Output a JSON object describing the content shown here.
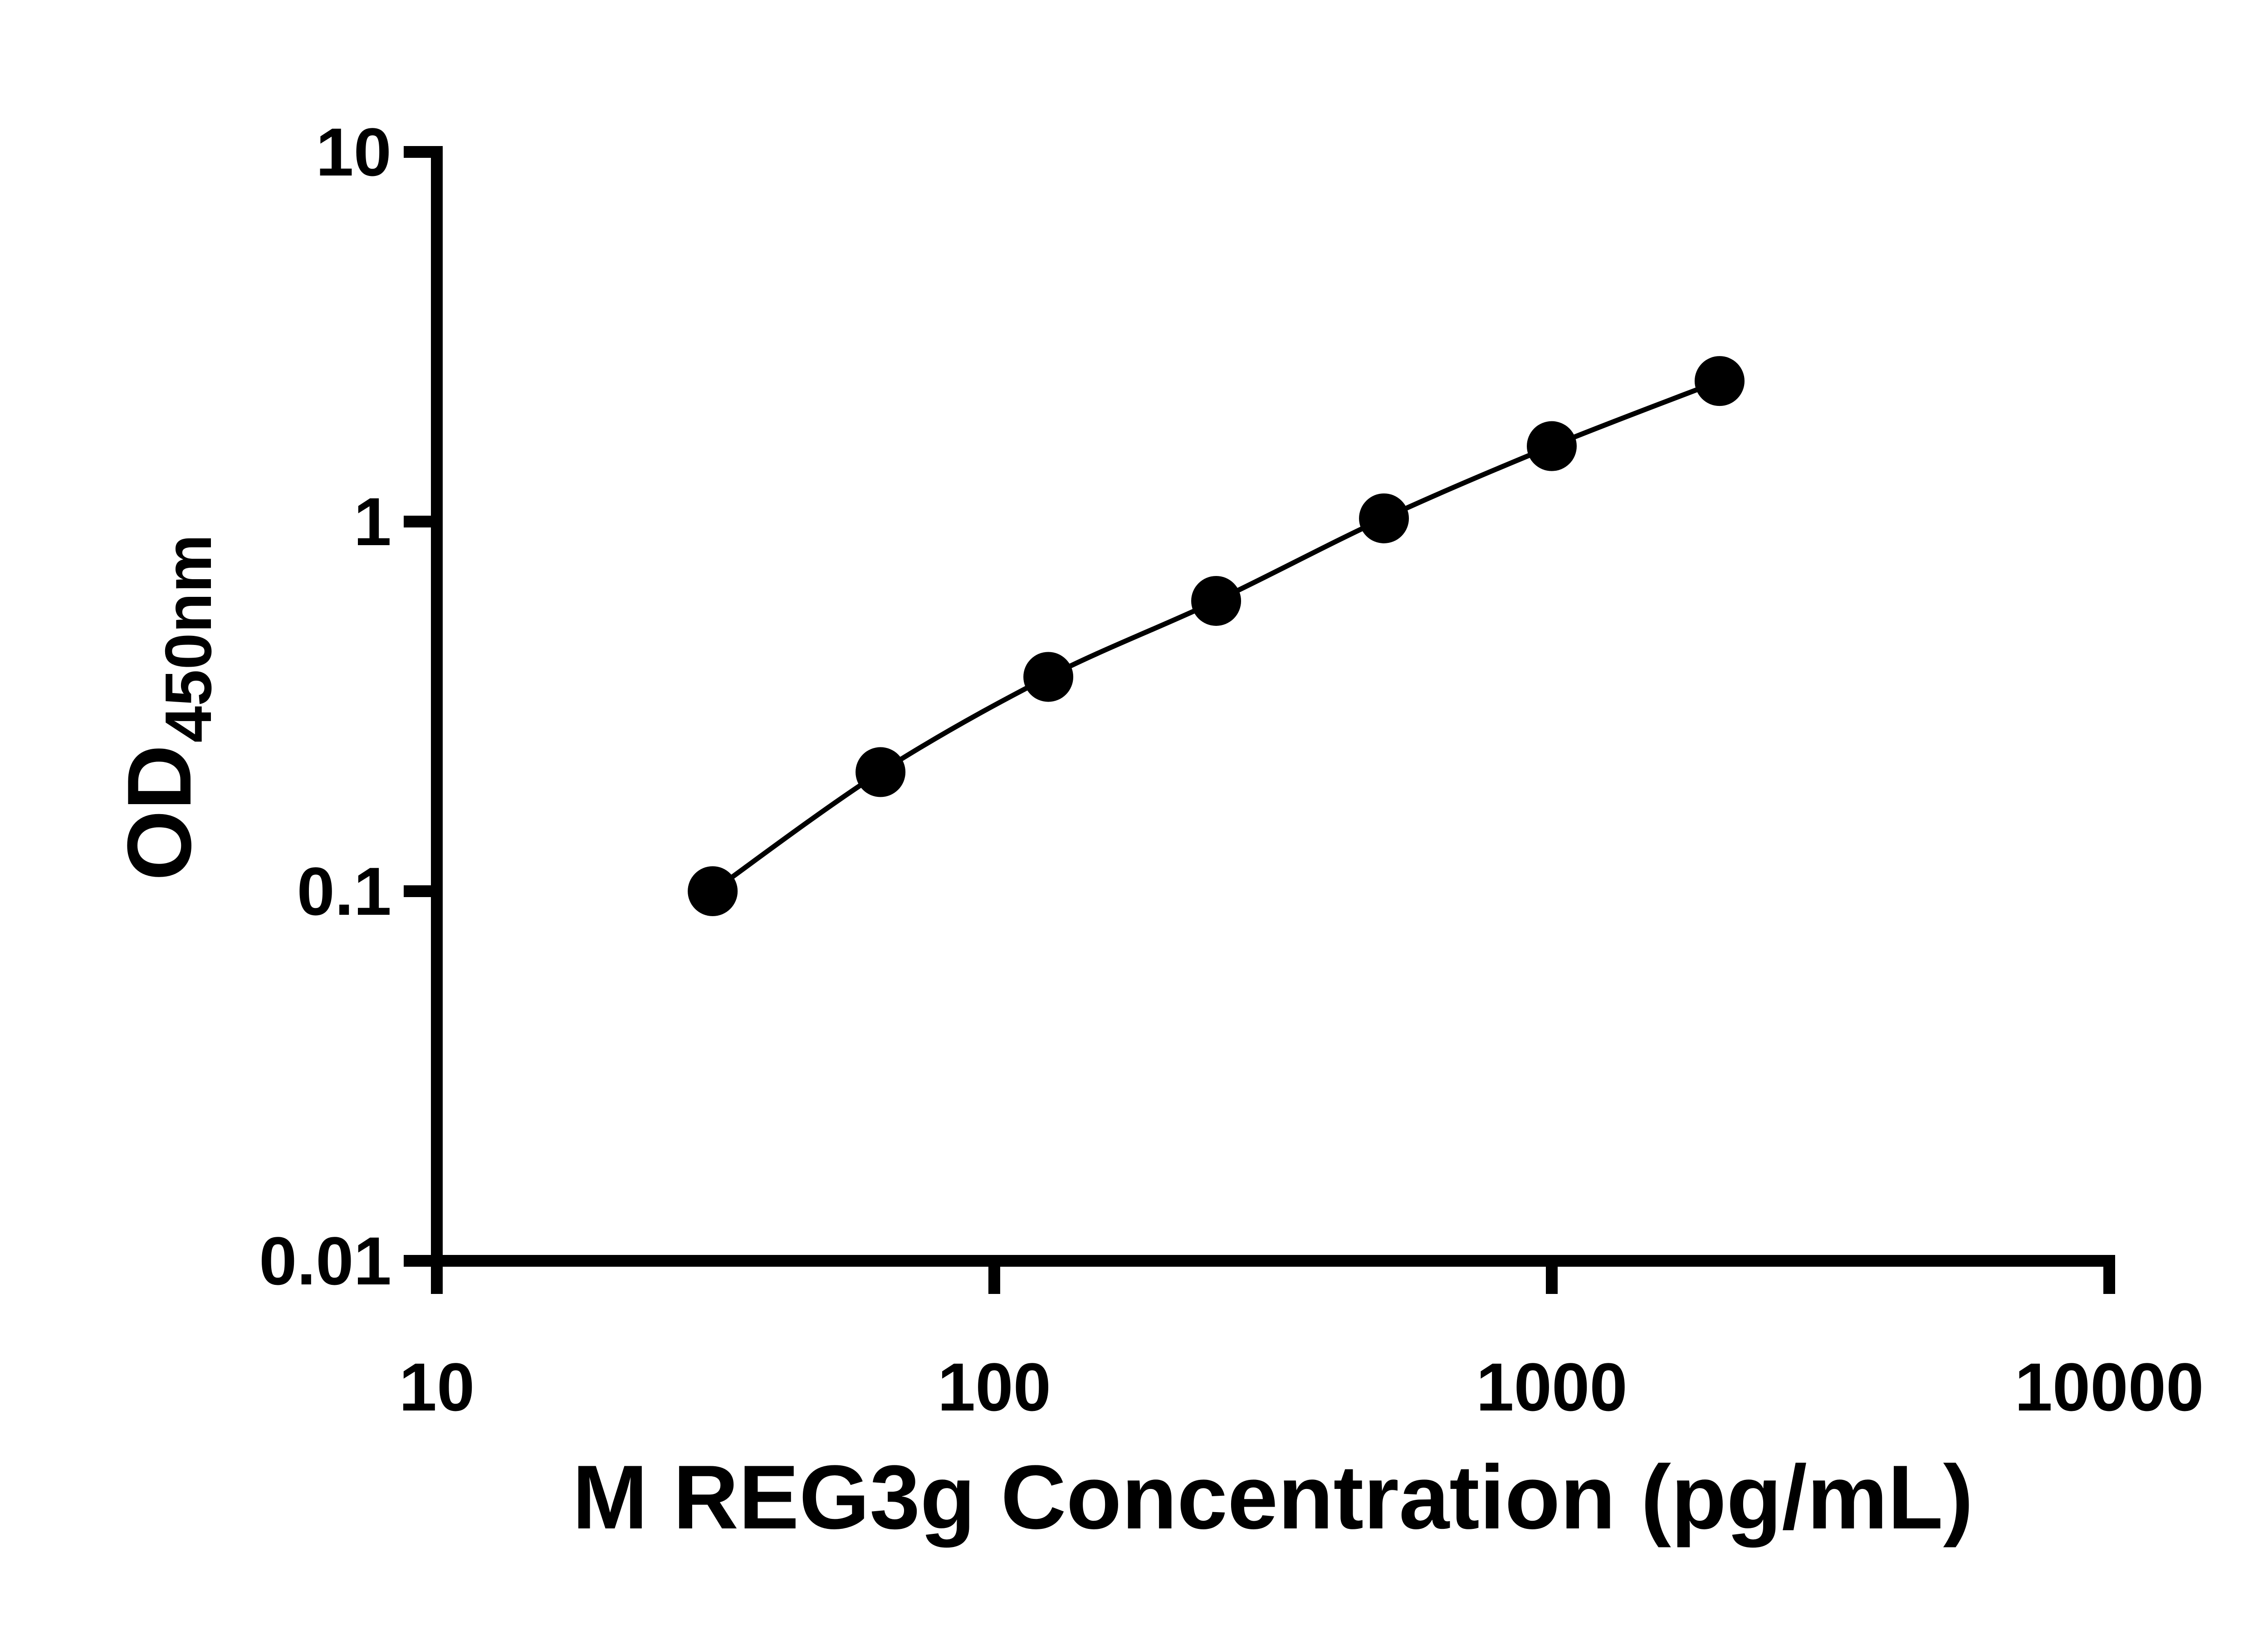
{
  "chart_data": {
    "type": "scatter",
    "title": "",
    "xlabel": "M REG3g Concentration (pg/mL)",
    "ylabel": "OD",
    "ylabel_subscript": "450nm",
    "x_scale": "log",
    "y_scale": "log",
    "xlim": [
      10,
      10000
    ],
    "ylim": [
      0.01,
      10
    ],
    "x_ticks": [
      10,
      100,
      1000,
      10000
    ],
    "x_tick_labels": [
      "10",
      "100",
      "1000",
      "10000"
    ],
    "y_ticks": [
      10,
      1,
      0.1,
      0.01
    ],
    "y_tick_labels": [
      "10",
      "1",
      "0.1",
      "0.01"
    ],
    "grid": false,
    "legend": false,
    "line_color": "#000000",
    "marker": "filled-circle",
    "marker_color": "#000000",
    "series": [
      {
        "points": [
          {
            "x": 31.25,
            "y": 0.1
          },
          {
            "x": 62.5,
            "y": 0.21
          },
          {
            "x": 125,
            "y": 0.38
          },
          {
            "x": 250,
            "y": 0.61
          },
          {
            "x": 500,
            "y": 1.02
          },
          {
            "x": 1000,
            "y": 1.6
          },
          {
            "x": 2000,
            "y": 2.4
          }
        ]
      }
    ]
  },
  "colors": {
    "foreground": "#000000",
    "background": "#ffffff"
  }
}
